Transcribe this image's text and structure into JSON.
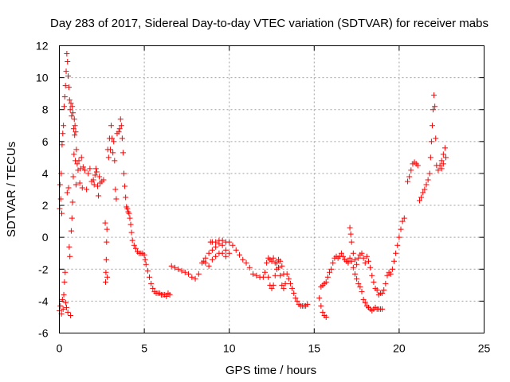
{
  "chart_data": {
    "type": "scatter",
    "title": "Day 283 of 2017, Sidereal Day-to-day VTEC variation (SDTVAR) for receiver mabs",
    "xlabel": "GPS time / hours",
    "ylabel": "SDTVAR / TECUs",
    "xlim": [
      0,
      25
    ],
    "ylim": [
      -6,
      12
    ],
    "xticks": [
      0,
      5,
      10,
      15,
      20,
      25
    ],
    "yticks": [
      -6,
      -4,
      -2,
      0,
      2,
      4,
      6,
      8,
      10,
      12
    ],
    "grid": true,
    "marker": "+",
    "color": "#ff0000",
    "series": [
      {
        "name": "SDTVAR",
        "points": [
          [
            0.0,
            -4.6
          ],
          [
            0.02,
            1.8
          ],
          [
            0.04,
            3.3
          ],
          [
            0.06,
            -4.3
          ],
          [
            0.08,
            2.4
          ],
          [
            0.1,
            4.0
          ],
          [
            0.12,
            -4.8
          ],
          [
            0.14,
            1.5
          ],
          [
            0.16,
            5.8
          ],
          [
            0.18,
            -3.9
          ],
          [
            0.2,
            6.5
          ],
          [
            0.22,
            -4.5
          ],
          [
            0.24,
            7.0
          ],
          [
            0.26,
            -3.6
          ],
          [
            0.28,
            8.2
          ],
          [
            0.3,
            -2.8
          ],
          [
            0.32,
            8.8
          ],
          [
            0.34,
            -2.2
          ],
          [
            0.36,
            9.5
          ],
          [
            0.38,
            -4.1
          ],
          [
            0.4,
            10.4
          ],
          [
            0.42,
            -4.4
          ],
          [
            0.44,
            11.5
          ],
          [
            0.46,
            2.8
          ],
          [
            0.48,
            11.0
          ],
          [
            0.5,
            -4.7
          ],
          [
            0.52,
            10.1
          ],
          [
            0.54,
            3.1
          ],
          [
            0.56,
            9.4
          ],
          [
            0.58,
            -0.6
          ],
          [
            0.6,
            8.6
          ],
          [
            0.62,
            -1.2
          ],
          [
            0.64,
            8.0
          ],
          [
            0.66,
            -4.9
          ],
          [
            0.68,
            8.4
          ],
          [
            0.7,
            0.4
          ],
          [
            0.72,
            7.6
          ],
          [
            0.74,
            1.2
          ],
          [
            0.76,
            8.2
          ],
          [
            0.78,
            2.2
          ],
          [
            0.8,
            7.8
          ],
          [
            0.82,
            3.8
          ],
          [
            0.84,
            6.8
          ],
          [
            0.86,
            5.2
          ],
          [
            0.88,
            7.4
          ],
          [
            0.9,
            6.4
          ],
          [
            0.92,
            7.0
          ],
          [
            0.94,
            4.8
          ],
          [
            0.96,
            6.6
          ],
          [
            0.98,
            3.3
          ],
          [
            1.0,
            5.5
          ],
          [
            1.05,
            4.6
          ],
          [
            1.1,
            4.2
          ],
          [
            1.15,
            4.8
          ],
          [
            1.2,
            3.4
          ],
          [
            1.25,
            4.3
          ],
          [
            1.3,
            5.0
          ],
          [
            1.35,
            3.1
          ],
          [
            1.4,
            4.4
          ],
          [
            1.5,
            4.2
          ],
          [
            1.6,
            3.0
          ],
          [
            1.7,
            4.0
          ],
          [
            1.8,
            4.3
          ],
          [
            1.9,
            3.5
          ],
          [
            2.0,
            3.6
          ],
          [
            2.05,
            3.3
          ],
          [
            2.1,
            3.9
          ],
          [
            2.15,
            4.3
          ],
          [
            2.2,
            4.1
          ],
          [
            2.25,
            3.2
          ],
          [
            2.3,
            2.6
          ],
          [
            2.35,
            3.8
          ],
          [
            2.4,
            3.4
          ],
          [
            2.5,
            3.5
          ],
          [
            2.6,
            3.6
          ],
          [
            2.7,
            0.9
          ],
          [
            2.72,
            -2.8
          ],
          [
            2.74,
            -2.2
          ],
          [
            2.76,
            -1.4
          ],
          [
            2.78,
            -0.3
          ],
          [
            2.8,
            0.5
          ],
          [
            2.82,
            -2.5
          ],
          [
            2.85,
            5.5
          ],
          [
            2.9,
            5.0
          ],
          [
            2.95,
            6.2
          ],
          [
            3.0,
            5.5
          ],
          [
            3.05,
            7.0
          ],
          [
            3.1,
            6.2
          ],
          [
            3.15,
            5.3
          ],
          [
            3.2,
            6.0
          ],
          [
            3.25,
            4.8
          ],
          [
            3.3,
            3.0
          ],
          [
            3.35,
            2.4
          ],
          [
            3.4,
            6.5
          ],
          [
            3.5,
            6.6
          ],
          [
            3.55,
            6.8
          ],
          [
            3.6,
            7.4
          ],
          [
            3.65,
            7.0
          ],
          [
            3.7,
            6.2
          ],
          [
            3.75,
            5.3
          ],
          [
            3.8,
            4.0
          ],
          [
            3.85,
            3.2
          ],
          [
            3.9,
            2.5
          ],
          [
            3.95,
            1.9
          ],
          [
            4.0,
            1.8
          ],
          [
            4.05,
            1.6
          ],
          [
            4.1,
            1.5
          ],
          [
            4.15,
            1.2
          ],
          [
            4.2,
            0.8
          ],
          [
            4.25,
            0.3
          ],
          [
            4.3,
            -0.2
          ],
          [
            4.4,
            -0.5
          ],
          [
            4.5,
            -0.7
          ],
          [
            4.6,
            -0.9
          ],
          [
            4.7,
            -1.0
          ],
          [
            4.8,
            -1.0
          ],
          [
            4.9,
            -1.0
          ],
          [
            5.0,
            -1.1
          ],
          [
            5.05,
            -1.4
          ],
          [
            5.1,
            -1.7
          ],
          [
            5.2,
            -2.1
          ],
          [
            5.3,
            -2.5
          ],
          [
            5.4,
            -2.9
          ],
          [
            5.5,
            -3.2
          ],
          [
            5.6,
            -3.4
          ],
          [
            5.7,
            -3.5
          ],
          [
            5.8,
            -3.5
          ],
          [
            5.9,
            -3.5
          ],
          [
            6.0,
            -3.6
          ],
          [
            6.1,
            -3.6
          ],
          [
            6.2,
            -3.6
          ],
          [
            6.3,
            -3.7
          ],
          [
            6.4,
            -3.5
          ],
          [
            6.5,
            -3.6
          ],
          [
            6.6,
            -1.8
          ],
          [
            6.8,
            -1.9
          ],
          [
            7.0,
            -2.0
          ],
          [
            7.2,
            -2.1
          ],
          [
            7.4,
            -2.2
          ],
          [
            7.6,
            -2.3
          ],
          [
            7.8,
            -2.5
          ],
          [
            8.0,
            -2.6
          ],
          [
            8.2,
            -2.3
          ],
          [
            8.4,
            -1.6
          ],
          [
            8.5,
            -1.5
          ],
          [
            8.6,
            -1.3
          ],
          [
            8.8,
            -1.0
          ],
          [
            9.0,
            -0.8
          ],
          [
            9.2,
            -0.6
          ],
          [
            9.4,
            -0.4
          ],
          [
            9.6,
            -0.5
          ],
          [
            9.8,
            -0.8
          ],
          [
            10.0,
            -1.0
          ],
          [
            8.6,
            -1.6
          ],
          [
            8.8,
            -1.8
          ],
          [
            9.0,
            -1.4
          ],
          [
            9.2,
            -1.2
          ],
          [
            9.4,
            -1.0
          ],
          [
            9.6,
            -1.0
          ],
          [
            9.8,
            -1.2
          ],
          [
            8.9,
            -0.3
          ],
          [
            9.0,
            -0.3
          ],
          [
            9.2,
            -0.3
          ],
          [
            9.4,
            -0.2
          ],
          [
            9.6,
            -0.2
          ],
          [
            9.8,
            -0.3
          ],
          [
            10.0,
            -0.3
          ],
          [
            10.2,
            -0.5
          ],
          [
            10.4,
            -0.8
          ],
          [
            10.6,
            -1.1
          ],
          [
            10.8,
            -1.4
          ],
          [
            11.0,
            -1.6
          ],
          [
            11.2,
            -1.9
          ],
          [
            11.4,
            -2.3
          ],
          [
            11.6,
            -2.4
          ],
          [
            11.8,
            -2.5
          ],
          [
            12.0,
            -2.5
          ],
          [
            12.1,
            -2.2
          ],
          [
            12.2,
            -1.6
          ],
          [
            12.3,
            -1.3
          ],
          [
            12.4,
            -1.4
          ],
          [
            12.5,
            -1.5
          ],
          [
            12.6,
            -1.3
          ],
          [
            12.7,
            -1.6
          ],
          [
            12.8,
            -2.0
          ],
          [
            12.9,
            -1.4
          ],
          [
            13.0,
            -1.5
          ],
          [
            13.1,
            -1.8
          ],
          [
            13.2,
            -2.3
          ],
          [
            13.3,
            -2.9
          ],
          [
            12.3,
            -2.5
          ],
          [
            12.4,
            -3.0
          ],
          [
            12.5,
            -3.2
          ],
          [
            12.6,
            -3.0
          ],
          [
            12.7,
            -2.4
          ],
          [
            12.8,
            -1.6
          ],
          [
            12.9,
            -1.9
          ],
          [
            13.0,
            -2.4
          ],
          [
            13.1,
            -3.0
          ],
          [
            13.2,
            -3.2
          ],
          [
            13.4,
            -2.3
          ],
          [
            13.5,
            -2.6
          ],
          [
            13.6,
            -2.9
          ],
          [
            13.7,
            -3.2
          ],
          [
            13.8,
            -3.5
          ],
          [
            13.9,
            -3.8
          ],
          [
            14.0,
            -4.0
          ],
          [
            14.1,
            -4.2
          ],
          [
            14.2,
            -4.3
          ],
          [
            14.3,
            -4.3
          ],
          [
            14.4,
            -4.3
          ],
          [
            14.5,
            -4.3
          ],
          [
            14.6,
            -4.2
          ],
          [
            15.3,
            -3.8
          ],
          [
            15.4,
            -4.3
          ],
          [
            15.5,
            -4.7
          ],
          [
            15.6,
            -4.9
          ],
          [
            15.7,
            -5.0
          ],
          [
            15.4,
            -3.1
          ],
          [
            15.5,
            -3.0
          ],
          [
            15.6,
            -2.9
          ],
          [
            15.7,
            -2.8
          ],
          [
            15.8,
            -2.5
          ],
          [
            15.9,
            -2.2
          ],
          [
            16.0,
            -2.0
          ],
          [
            16.1,
            -1.6
          ],
          [
            16.2,
            -1.3
          ],
          [
            16.3,
            -1.2
          ],
          [
            16.4,
            -1.3
          ],
          [
            16.5,
            -1.2
          ],
          [
            16.6,
            -1.0
          ],
          [
            16.7,
            -1.2
          ],
          [
            16.8,
            -1.4
          ],
          [
            16.9,
            -1.5
          ],
          [
            17.0,
            -1.6
          ],
          [
            17.1,
            0.6
          ],
          [
            17.15,
            0.2
          ],
          [
            17.2,
            -0.3
          ],
          [
            17.3,
            -1.0
          ],
          [
            17.4,
            -1.4
          ],
          [
            17.5,
            -1.7
          ],
          [
            17.6,
            -1.3
          ],
          [
            17.7,
            -1.1
          ],
          [
            17.8,
            -1.0
          ],
          [
            17.9,
            -1.3
          ],
          [
            18.0,
            -1.6
          ],
          [
            18.1,
            -1.2
          ],
          [
            18.2,
            -1.5
          ],
          [
            18.3,
            -1.9
          ],
          [
            18.4,
            -2.4
          ],
          [
            18.5,
            -2.8
          ],
          [
            18.6,
            -3.2
          ],
          [
            18.7,
            -3.3
          ],
          [
            18.8,
            -3.6
          ],
          [
            18.9,
            -3.5
          ],
          [
            19.0,
            -3.5
          ],
          [
            19.1,
            -3.3
          ],
          [
            19.2,
            -2.9
          ],
          [
            19.3,
            -2.4
          ],
          [
            19.4,
            -2.2
          ],
          [
            19.5,
            -2.3
          ],
          [
            19.6,
            -2.0
          ],
          [
            19.7,
            -1.5
          ],
          [
            19.8,
            -1.0
          ],
          [
            19.9,
            -0.5
          ],
          [
            20.0,
            0.0
          ],
          [
            20.1,
            0.5
          ],
          [
            20.2,
            1.0
          ],
          [
            20.3,
            1.2
          ],
          [
            17.0,
            -1.5
          ],
          [
            17.1,
            -1.3
          ],
          [
            17.2,
            -1.5
          ],
          [
            17.3,
            -1.9
          ],
          [
            17.4,
            -2.3
          ],
          [
            17.5,
            -2.6
          ],
          [
            17.6,
            -2.9
          ],
          [
            17.7,
            -3.1
          ],
          [
            17.8,
            -3.4
          ],
          [
            17.9,
            -3.9
          ],
          [
            18.0,
            -4.1
          ],
          [
            18.1,
            -4.3
          ],
          [
            18.2,
            -4.4
          ],
          [
            18.3,
            -4.5
          ],
          [
            18.4,
            -4.6
          ],
          [
            18.5,
            -4.5
          ],
          [
            18.6,
            -4.4
          ],
          [
            18.7,
            -4.5
          ],
          [
            18.8,
            -4.5
          ],
          [
            18.9,
            -4.5
          ],
          [
            19.0,
            -4.5
          ],
          [
            20.5,
            3.5
          ],
          [
            20.6,
            3.8
          ],
          [
            20.7,
            4.2
          ],
          [
            20.8,
            4.6
          ],
          [
            20.9,
            4.7
          ],
          [
            21.0,
            4.6
          ],
          [
            21.1,
            4.5
          ],
          [
            21.2,
            2.3
          ],
          [
            21.3,
            2.5
          ],
          [
            21.4,
            2.8
          ],
          [
            21.5,
            3.0
          ],
          [
            21.6,
            3.3
          ],
          [
            21.7,
            3.6
          ],
          [
            21.8,
            4.0
          ],
          [
            21.85,
            5.0
          ],
          [
            21.9,
            6.0
          ],
          [
            21.95,
            7.0
          ],
          [
            22.0,
            8.0
          ],
          [
            22.05,
            8.9
          ],
          [
            22.1,
            8.2
          ],
          [
            22.15,
            6.2
          ],
          [
            22.2,
            4.5
          ],
          [
            22.3,
            4.2
          ],
          [
            22.4,
            4.5
          ],
          [
            22.5,
            4.8
          ],
          [
            22.6,
            5.2
          ],
          [
            22.7,
            5.6
          ],
          [
            22.75,
            5.0
          ],
          [
            22.5,
            4.3
          ],
          [
            22.6,
            4.6
          ]
        ]
      }
    ]
  }
}
